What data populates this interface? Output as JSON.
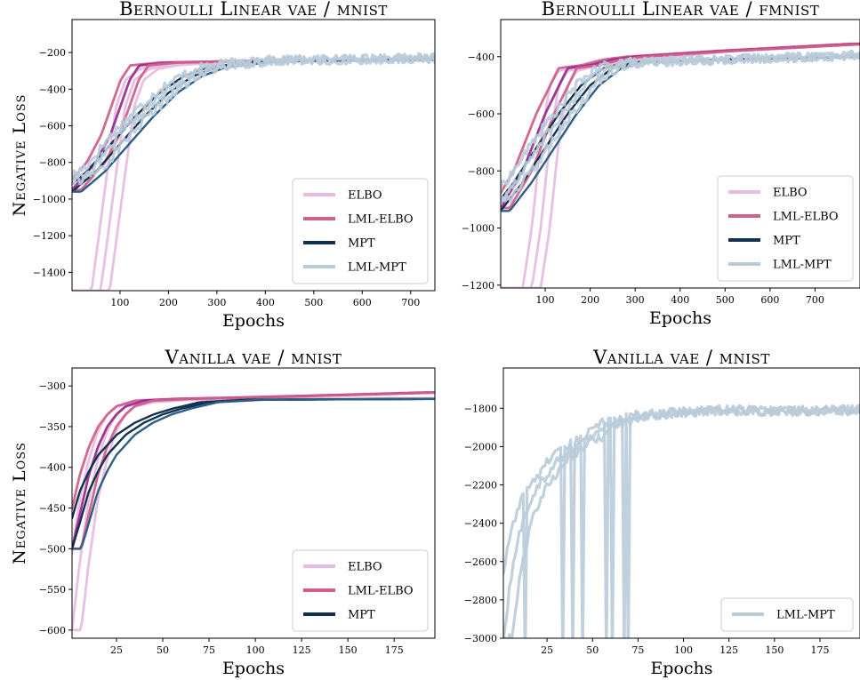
{
  "figure": {
    "ylabel": "Negative Loss",
    "colors": {
      "elbo": "#e6bde0",
      "lml_elbo": "#d2608c",
      "mpt": "#12304f",
      "lml_mpt": "#b9cbd9",
      "purple": "#9a2e8f",
      "blue_mid": "#2b5f86"
    }
  },
  "chart_data": [
    {
      "type": "line",
      "title": "Bernoulli Linear vae / mnist",
      "xlabel": "Epochs",
      "ylabel": "Negative Loss",
      "xlim": [
        1,
        750
      ],
      "ylim": [
        -1500,
        -20
      ],
      "xticks": [
        100,
        200,
        300,
        400,
        500,
        600,
        700
      ],
      "yticks": [
        -1400,
        -1200,
        -1000,
        -800,
        -600,
        -400,
        -200
      ],
      "legend": [
        "ELBO",
        "LML-ELBO",
        "MPT",
        "LML-MPT"
      ],
      "legend_position": "lower-right",
      "series": [
        {
          "name": "ELBO",
          "x": [
            60,
            90,
            110,
            130,
            160,
            200,
            300,
            400,
            750
          ],
          "y": [
            -1500,
            -900,
            -500,
            -350,
            -290,
            -270,
            -250,
            -245,
            -240
          ]
        },
        {
          "name": "LML-ELBO",
          "x": [
            1,
            50,
            80,
            100,
            120,
            140,
            200,
            400,
            750
          ],
          "y": [
            -950,
            -800,
            -650,
            -500,
            -350,
            -270,
            -255,
            -245,
            -240
          ]
        },
        {
          "name": "MPT",
          "x": [
            1,
            50,
            100,
            150,
            200,
            250,
            300,
            400,
            750
          ],
          "y": [
            -960,
            -850,
            -700,
            -550,
            -420,
            -330,
            -280,
            -250,
            -235
          ]
        },
        {
          "name": "LML-MPT",
          "x": [
            1,
            50,
            100,
            150,
            200,
            250,
            300,
            400,
            750
          ],
          "y": [
            -900,
            -820,
            -650,
            -520,
            -400,
            -320,
            -270,
            -245,
            -230
          ]
        }
      ]
    },
    {
      "type": "line",
      "title": "Bernoulli Linear vae / fmnist",
      "xlabel": "Epochs",
      "ylabel": "",
      "xlim": [
        1,
        800
      ],
      "ylim": [
        -1210,
        -270
      ],
      "xticks": [
        100,
        200,
        300,
        400,
        500,
        600,
        700
      ],
      "yticks": [
        -1200,
        -1000,
        -800,
        -600,
        -400
      ],
      "legend": [
        "ELBO",
        "LML-ELBO",
        "MPT",
        "LML-MPT"
      ],
      "legend_position": "lower-right",
      "series": [
        {
          "name": "ELBO",
          "x": [
            70,
            90,
            110,
            130,
            150,
            200,
            300,
            500,
            800
          ],
          "y": [
            -1210,
            -1000,
            -700,
            -500,
            -450,
            -430,
            -410,
            -380,
            -355
          ]
        },
        {
          "name": "LML-ELBO",
          "x": [
            1,
            50,
            100,
            150,
            200,
            250,
            300,
            500,
            800
          ],
          "y": [
            -930,
            -800,
            -600,
            -440,
            -430,
            -410,
            -400,
            -380,
            -355
          ]
        },
        {
          "name": "MPT",
          "x": [
            1,
            50,
            100,
            150,
            200,
            250,
            300,
            500,
            800
          ],
          "y": [
            -940,
            -840,
            -720,
            -600,
            -500,
            -440,
            -420,
            -410,
            -400
          ]
        },
        {
          "name": "LML-MPT",
          "x": [
            1,
            50,
            100,
            150,
            200,
            250,
            300,
            500,
            800
          ],
          "y": [
            -900,
            -800,
            -680,
            -580,
            -480,
            -430,
            -420,
            -410,
            -395
          ]
        }
      ]
    },
    {
      "type": "line",
      "title": "Vanilla vae / mnist",
      "xlabel": "Epochs",
      "ylabel": "Negative Loss",
      "xlim": [
        1,
        197
      ],
      "ylim": [
        -610,
        -278
      ],
      "xticks": [
        25,
        50,
        75,
        100,
        125,
        150,
        175
      ],
      "yticks": [
        -600,
        -550,
        -500,
        -450,
        -400,
        -350,
        -300
      ],
      "legend": [
        "ELBO",
        "LML-ELBO",
        "MPT"
      ],
      "legend_position": "lower-right",
      "series": [
        {
          "name": "ELBO",
          "x": [
            1,
            5,
            10,
            15,
            20,
            25,
            30,
            40,
            60,
            100,
            197
          ],
          "y": [
            -600,
            -520,
            -440,
            -390,
            -355,
            -335,
            -325,
            -320,
            -317,
            -316,
            -315
          ]
        },
        {
          "name": "LML-ELBO",
          "x": [
            1,
            5,
            10,
            15,
            20,
            25,
            30,
            40,
            60,
            100,
            150,
            197
          ],
          "y": [
            -500,
            -460,
            -410,
            -375,
            -350,
            -335,
            -325,
            -318,
            -316,
            -314,
            -311,
            -308
          ]
        },
        {
          "name": "MPT",
          "x": [
            1,
            5,
            10,
            15,
            20,
            30,
            40,
            50,
            60,
            75,
            100,
            197
          ],
          "y": [
            -500,
            -470,
            -430,
            -405,
            -385,
            -360,
            -345,
            -335,
            -328,
            -320,
            -317,
            -316
          ]
        }
      ]
    },
    {
      "type": "line",
      "title": "Vanilla vae / mnist",
      "xlabel": "Epochs",
      "ylabel": "",
      "xlim": [
        1,
        197
      ],
      "ylim": [
        -3000,
        -1590
      ],
      "xticks": [
        25,
        50,
        75,
        100,
        125,
        150,
        175
      ],
      "yticks": [
        -3000,
        -2800,
        -2600,
        -2400,
        -2200,
        -2000,
        -1800
      ],
      "legend": [
        "LML-MPT"
      ],
      "legend_position": "lower-right",
      "series": [
        {
          "name": "LML-MPT",
          "x": [
            1,
            5,
            10,
            15,
            20,
            25,
            30,
            40,
            50,
            60,
            75,
            100,
            125,
            150,
            197
          ],
          "y": [
            -3000,
            -2700,
            -2450,
            -2300,
            -2200,
            -2150,
            -2080,
            -2000,
            -1950,
            -1880,
            -1840,
            -1820,
            -1810,
            -1815,
            -1810
          ]
        }
      ]
    }
  ]
}
